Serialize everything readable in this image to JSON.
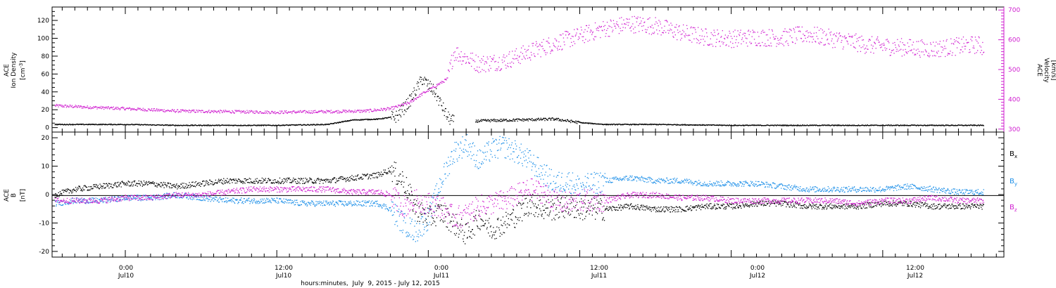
{
  "colors": {
    "axis": "#000000",
    "density": "#000000",
    "velocity": "#d020d0",
    "bx": "#000000",
    "by": "#1e90e8",
    "bz": "#d020d0"
  },
  "top_panel": {
    "left_label_lines": [
      "ACE",
      "Ion Density"
    ],
    "left_unit": "[cm",
    "left_unit_exp": "-3",
    "left_unit_end": "]",
    "right_label_lines": [
      "ACE",
      "Velocity"
    ],
    "right_unit": "[km/s]"
  },
  "bottom_panel": {
    "left_label_lines": [
      "ACE",
      "B"
    ],
    "left_unit": "[nT]",
    "legend": [
      {
        "base": "B",
        "sub": "x",
        "color": "#000000"
      },
      {
        "base": "B",
        "sub": "y",
        "color": "#1e90e8"
      },
      {
        "base": "B",
        "sub": "z",
        "color": "#d020d0"
      }
    ]
  },
  "xaxis": {
    "ticks": [
      {
        "time": "0:00",
        "date": "Jul10"
      },
      {
        "time": "12:00",
        "date": "Jul10"
      },
      {
        "time": "0:00",
        "date": "Jul11"
      },
      {
        "time": "12:00",
        "date": "Jul11"
      },
      {
        "time": "0:00",
        "date": "Jul12"
      },
      {
        "time": "12:00",
        "date": "Jul12"
      }
    ],
    "title": "hours:minutes,  July  9, 2015 - July 12, 2015"
  },
  "chart_data": [
    {
      "type": "scatter",
      "panel": "top",
      "x_unit": "hours since Jul 9 2015 00:00",
      "xlim": [
        18.2,
        93.6
      ],
      "ylim_left": [
        -5,
        135
      ],
      "yticks_left": [
        0,
        20,
        40,
        60,
        80,
        100,
        120
      ],
      "ylim_right": [
        290,
        710
      ],
      "yticks_right": [
        300,
        400,
        500,
        600,
        700
      ],
      "series": [
        {
          "name": "Ion Density",
          "axis": "left",
          "color": "#000000",
          "x": [
            18.4,
            21,
            24,
            28,
            32,
            36,
            40,
            42,
            44,
            45.5,
            46.5,
            47.5,
            48.5,
            49.5,
            50,
            51.5,
            52,
            55,
            58,
            60,
            62,
            66,
            72,
            78,
            84,
            90,
            92
          ],
          "y": [
            4,
            4,
            4,
            3,
            3,
            3,
            4,
            9,
            10,
            13,
            30,
            55,
            40,
            12,
            7,
            7,
            8,
            9,
            10,
            6,
            4,
            4,
            3,
            3,
            3,
            3,
            3
          ]
        },
        {
          "name": "Velocity",
          "axis": "right",
          "color": "#d020d0",
          "x": [
            18.4,
            21,
            24,
            28,
            32,
            36,
            40,
            43,
            45,
            46.5,
            47.5,
            48.5,
            49.5,
            50,
            51,
            52,
            54,
            56,
            58,
            60,
            62,
            64,
            66,
            68,
            70,
            72,
            74,
            76,
            78,
            80,
            81.5,
            82.5,
            84,
            86,
            88,
            90,
            91.5,
            92
          ],
          "y": [
            380,
            375,
            370,
            362,
            360,
            358,
            360,
            362,
            370,
            390,
            420,
            445,
            470,
            560,
            540,
            520,
            530,
            560,
            590,
            615,
            640,
            655,
            648,
            625,
            610,
            605,
            610,
            608,
            620,
            605,
            595,
            585,
            580,
            575,
            570,
            580,
            585,
            575
          ]
        }
      ]
    },
    {
      "type": "scatter",
      "panel": "bottom",
      "x_unit": "hours since Jul 9 2015 00:00",
      "xlim": [
        18.2,
        93.6
      ],
      "ylim": [
        -22,
        22
      ],
      "yticks": [
        -20,
        -10,
        0,
        10,
        20
      ],
      "series": [
        {
          "name": "Bx",
          "color": "#000000",
          "x": [
            18.4,
            20,
            22,
            24,
            26,
            28,
            30,
            32,
            34,
            36,
            38,
            40,
            42,
            44,
            45,
            46,
            47,
            48,
            49,
            50,
            51,
            52,
            53,
            54,
            55,
            56,
            57,
            58,
            59,
            60,
            62,
            64,
            66,
            68,
            70,
            72,
            74,
            76,
            78,
            80,
            82,
            84,
            86,
            88,
            90,
            92
          ],
          "y": [
            0,
            2,
            3,
            4,
            4,
            3,
            4,
            5,
            5,
            5,
            5,
            5,
            6,
            7,
            9,
            5,
            -5,
            -8,
            -6,
            -10,
            -14,
            -8,
            -12,
            -10,
            -7,
            -3,
            -5,
            -5,
            -4,
            -5,
            -5,
            -4,
            -5,
            -5,
            -4,
            -4,
            -3,
            -3,
            -4,
            -4,
            -4,
            -3,
            -3,
            -4,
            -4,
            -4
          ]
        },
        {
          "name": "By",
          "color": "#1e90e8",
          "x": [
            18.4,
            20,
            22,
            24,
            26,
            28,
            30,
            32,
            34,
            36,
            38,
            40,
            42,
            44,
            45,
            46,
            47,
            48,
            49,
            50,
            51,
            52,
            53,
            54,
            55,
            56,
            57,
            58,
            59,
            60,
            62,
            64,
            66,
            68,
            70,
            72,
            74,
            76,
            78,
            80,
            82,
            84,
            86,
            88,
            90,
            92
          ],
          "y": [
            -3,
            -2,
            -2,
            -1,
            -1,
            0,
            -1,
            -2,
            -2,
            -2,
            -3,
            -3,
            -3,
            -3,
            -5,
            -10,
            -13,
            -8,
            5,
            15,
            18,
            12,
            16,
            17,
            15,
            12,
            8,
            4,
            5,
            3,
            5,
            6,
            5,
            5,
            4,
            4,
            4,
            3,
            2,
            2,
            2,
            2,
            3,
            2,
            1,
            1
          ]
        },
        {
          "name": "Bz",
          "color": "#d020d0",
          "x": [
            18.4,
            20,
            22,
            24,
            26,
            28,
            30,
            32,
            34,
            36,
            38,
            40,
            42,
            44,
            45,
            46,
            47,
            48,
            49,
            50,
            51,
            52,
            53,
            54,
            55,
            56,
            57,
            58,
            59,
            60,
            62,
            64,
            66,
            68,
            70,
            72,
            74,
            76,
            78,
            80,
            82,
            84,
            86,
            88,
            90,
            92
          ],
          "y": [
            -2,
            -2,
            -2,
            -1,
            -1,
            0,
            0,
            1,
            2,
            2,
            2,
            2,
            1,
            1,
            0,
            -4,
            -2,
            -3,
            -4,
            -8,
            -7,
            -4,
            -3,
            -2,
            0,
            2,
            1,
            -2,
            -3,
            -2,
            -2,
            0,
            0,
            -1,
            -1,
            -2,
            -2,
            -2,
            -2,
            -2,
            -3,
            -2,
            -2,
            -1,
            -2,
            -2
          ]
        }
      ]
    }
  ]
}
